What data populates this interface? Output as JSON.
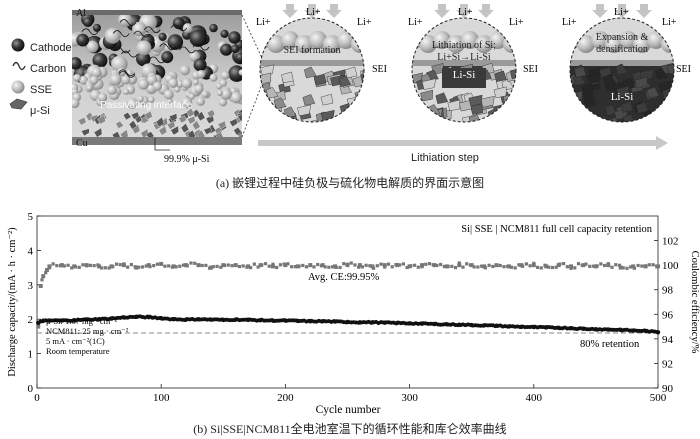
{
  "panel_a": {
    "cell": {
      "al_label": "Al",
      "cu_label": "Cu",
      "interface_label": "Passivating interface",
      "purity_label": "99.9% μ-Si"
    },
    "legend": [
      {
        "label": "Cathode",
        "icon": "dark-sphere-icon"
      },
      {
        "label": "Carbon",
        "icon": "carbon-squiggle-icon"
      },
      {
        "label": "SSE",
        "icon": "light-sphere-icon"
      },
      {
        "label": "μ-Si",
        "icon": "silicon-flake-icon"
      }
    ],
    "circles": [
      {
        "title": "SEI formation",
        "subtitle": "",
        "region": "",
        "sei_label": "SEI",
        "li_labels": [
          "Li+",
          "Li+",
          "Li+"
        ]
      },
      {
        "title": "Lithiation of Si;",
        "subtitle": "Li+Si→Li-Si",
        "region": "Li-Si",
        "sei_label": "SEI",
        "li_labels": [
          "Li+",
          "Li+",
          "Li+"
        ]
      },
      {
        "title": "Expansion &",
        "subtitle": "densification",
        "region": "Li-Si",
        "sei_label": "SEI",
        "li_labels": [
          "Li+",
          "Li+",
          "Li+"
        ]
      }
    ],
    "step_label": "Lithiation step"
  },
  "caption_a": "(a) 嵌锂过程中硅负极与硫化物电解质的界面示意图",
  "chart_data": {
    "type": "scatter",
    "title": "Si| SSE | NCM811 full cell capacity retention",
    "xlabel": "Cycle number",
    "ylabel": "Discharge capacity/(mA · h · cm⁻²)",
    "y2label": "Coulombic efficiency/%",
    "xlim": [
      0,
      500
    ],
    "ylim": [
      0,
      5
    ],
    "y2lim": [
      90,
      104
    ],
    "xticks": [
      "0",
      "100",
      "200",
      "300",
      "400",
      "500"
    ],
    "yticks": [
      "0",
      "1",
      "2",
      "3",
      "4",
      "5"
    ],
    "y2ticks": [
      "90",
      "92",
      "94",
      "96",
      "98",
      "100",
      "102"
    ],
    "series": [
      {
        "axis": "left",
        "color": "#111111",
        "x": [
          1,
          5,
          10,
          20,
          30,
          40,
          50,
          60,
          70,
          80,
          90,
          100,
          110,
          120,
          130,
          140,
          150,
          160,
          170,
          180,
          190,
          200,
          210,
          220,
          230,
          240,
          250,
          260,
          270,
          280,
          290,
          300,
          310,
          320,
          330,
          340,
          350,
          360,
          370,
          380,
          390,
          400,
          410,
          420,
          430,
          440,
          450,
          460,
          470,
          480,
          490,
          500
        ],
        "y": [
          1.9,
          1.95,
          1.96,
          1.96,
          1.97,
          1.99,
          2.0,
          2.02,
          2.05,
          2.07,
          2.06,
          2.03,
          2.0,
          1.99,
          2.0,
          1.99,
          1.98,
          1.99,
          1.98,
          1.97,
          1.96,
          1.96,
          1.95,
          1.94,
          1.94,
          1.93,
          1.92,
          1.91,
          1.91,
          1.9,
          1.89,
          1.88,
          1.87,
          1.86,
          1.85,
          1.84,
          1.83,
          1.82,
          1.81,
          1.79,
          1.78,
          1.77,
          1.76,
          1.75,
          1.74,
          1.72,
          1.71,
          1.7,
          1.69,
          1.67,
          1.66,
          1.62
        ]
      },
      {
        "axis": "right",
        "color": "#777777",
        "x": [
          1,
          3,
          5,
          8,
          10,
          20,
          30,
          40,
          50,
          60,
          70,
          80,
          90,
          100,
          110,
          120,
          130,
          140,
          150,
          160,
          170,
          180,
          190,
          200,
          210,
          220,
          230,
          240,
          250,
          260,
          270,
          280,
          290,
          300,
          310,
          320,
          330,
          340,
          350,
          360,
          370,
          380,
          390,
          400,
          410,
          420,
          430,
          440,
          450,
          460,
          470,
          480,
          490,
          500
        ],
        "y": [
          95.0,
          98.3,
          99.1,
          99.6,
          99.9,
          100.0,
          99.9,
          100.0,
          99.9,
          99.9,
          100.0,
          99.8,
          100.0,
          100.1,
          99.9,
          100.0,
          100.0,
          99.8,
          100.0,
          100.0,
          99.9,
          100.0,
          99.9,
          100.0,
          99.9,
          100.0,
          100.0,
          99.9,
          100.0,
          100.0,
          99.9,
          100.0,
          100.0,
          99.9,
          100.0,
          100.0,
          99.9,
          100.0,
          100.0,
          99.9,
          100.0,
          99.9,
          100.0,
          100.0,
          99.9,
          100.0,
          99.9,
          100.0,
          99.9,
          100.0,
          99.8,
          99.9,
          99.9,
          99.9
        ]
      }
    ],
    "reference_line": {
      "y": 1.6,
      "label": "80% retention"
    },
    "annotations": {
      "ce": "Avg. CE:99.95%",
      "conditions": [
        "μ-Si: 1.67 mg · cm⁻²",
        "NCM811: 25 mg · cm⁻²",
        "5 mA · cm⁻²(1C)",
        "Room temperature"
      ]
    }
  },
  "caption_b": "(b) Si|SSE|NCM811全电池室温下的循环性能和库仑效率曲线"
}
